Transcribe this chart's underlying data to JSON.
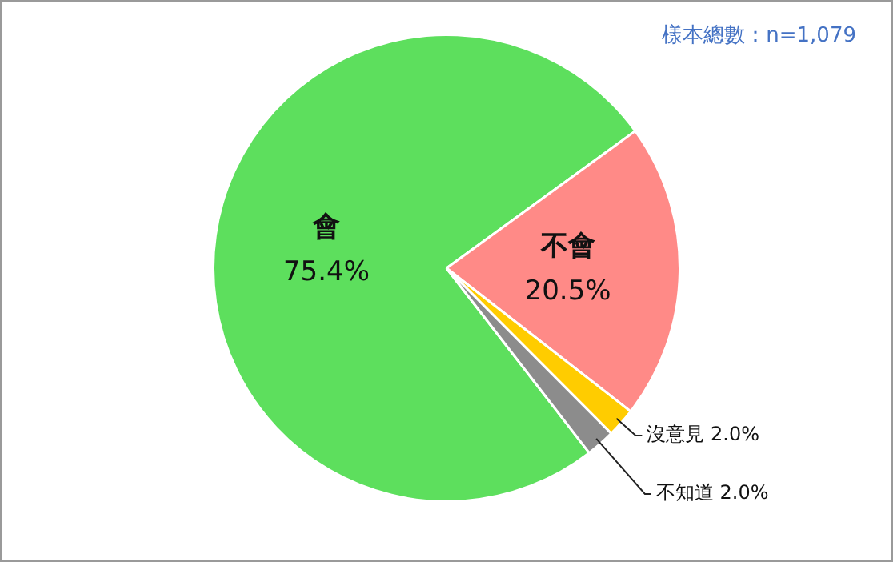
{
  "chart_data": {
    "type": "pie",
    "categories": [
      "會",
      "不會",
      "沒意見",
      "不知道"
    ],
    "values": [
      75.4,
      20.5,
      2.0,
      2.0
    ],
    "colors": [
      "#5ddf5d",
      "#ff8a87",
      "#ffcc00",
      "#8c8c8c"
    ],
    "value_labels": [
      "75.4%",
      "20.5%",
      "2.0%",
      "2.0%"
    ],
    "legend": false,
    "annotations": [
      "樣本總數：n=1,079"
    ]
  }
}
